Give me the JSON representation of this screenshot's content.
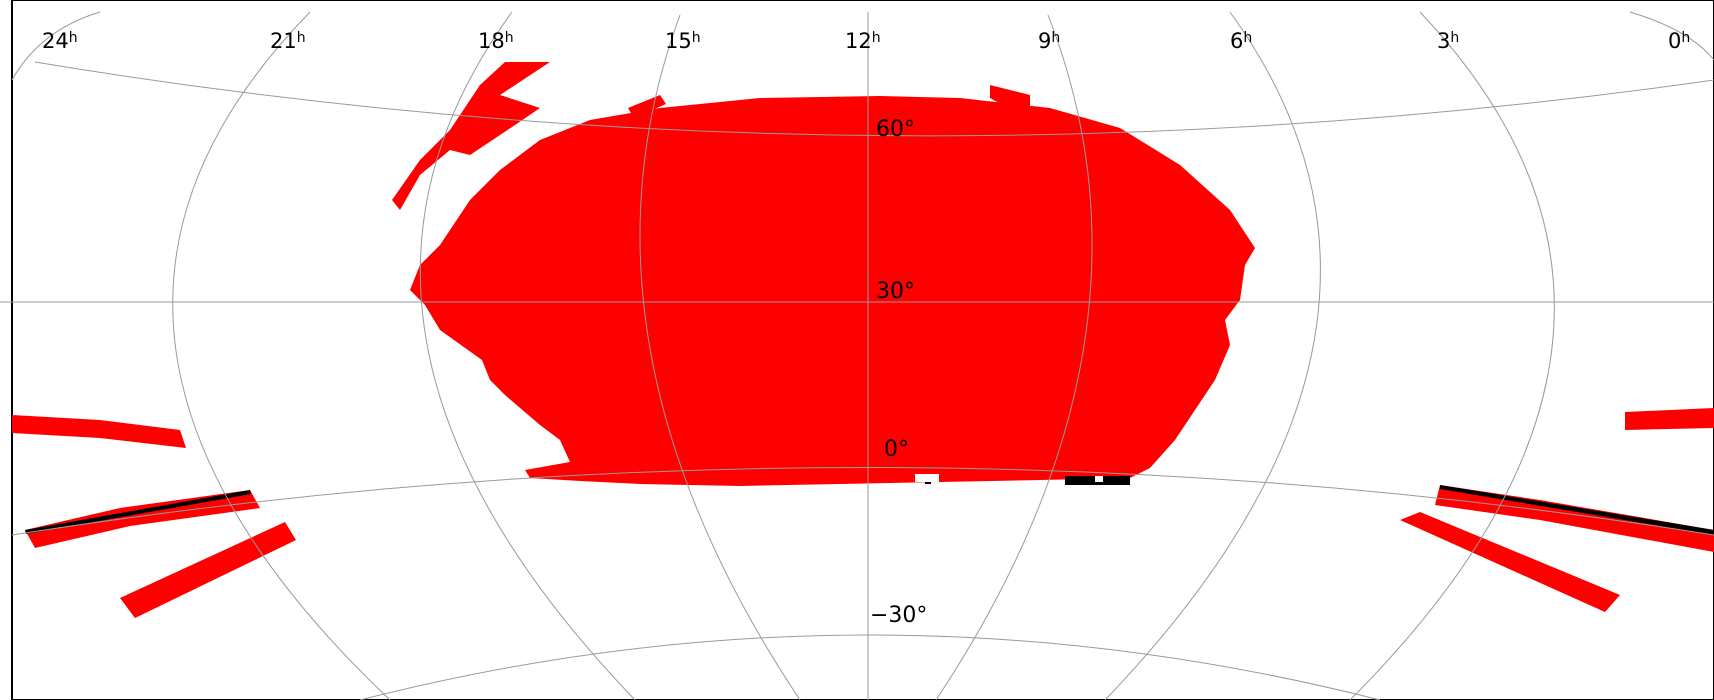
{
  "map": {
    "projection": "Aitoff",
    "coordinate_system": "equatorial",
    "colors": {
      "coverage": "#ff0000",
      "gaps": "#000000",
      "grid": "#9a9a9a",
      "background": "#ffffff"
    },
    "ra_labels": [
      {
        "value": "24",
        "unit": "h"
      },
      {
        "value": "21",
        "unit": "h"
      },
      {
        "value": "18",
        "unit": "h"
      },
      {
        "value": "15",
        "unit": "h"
      },
      {
        "value": "12",
        "unit": "h"
      },
      {
        "value": "9",
        "unit": "h"
      },
      {
        "value": "6",
        "unit": "h"
      },
      {
        "value": "3",
        "unit": "h"
      },
      {
        "value": "0",
        "unit": "h"
      }
    ],
    "dec_labels": [
      "60°",
      "30°",
      "0°",
      "−30°"
    ],
    "coverage_regions": [
      "north-galactic-cap",
      "southern-stripe-west-1",
      "southern-stripe-west-2",
      "southern-stripe-west-3",
      "southern-stripe-east-1",
      "southern-stripe-east-2",
      "southern-stripe-east-3",
      "northern-fragment",
      "northern-tab"
    ]
  }
}
